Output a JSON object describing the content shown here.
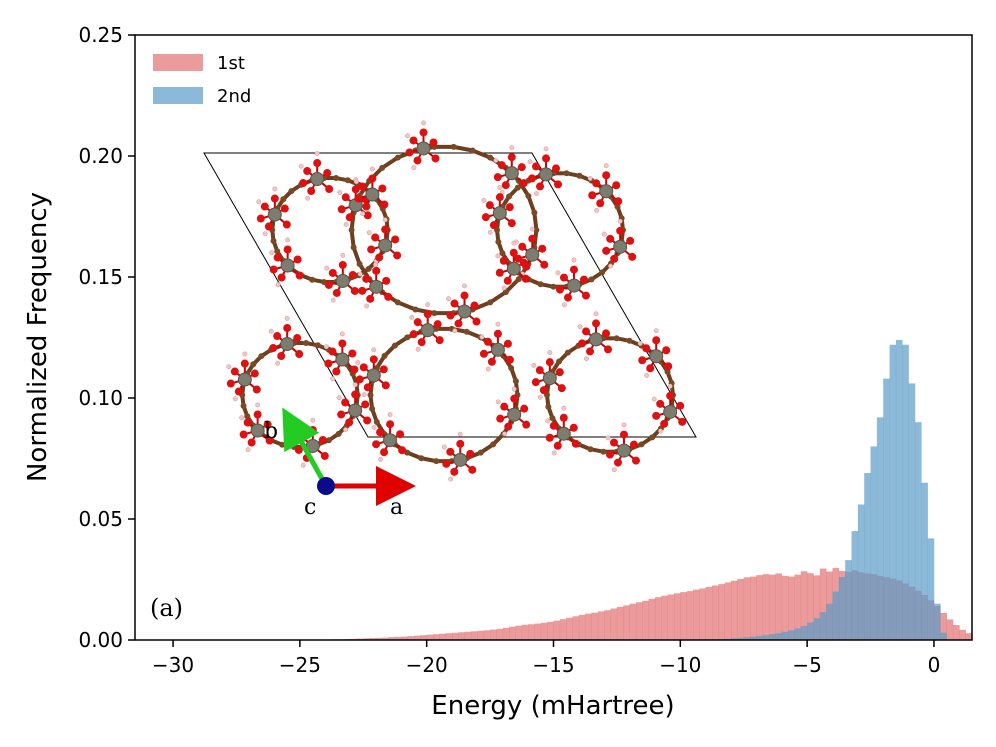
{
  "chart_data": {
    "type": "bar",
    "xlabel": "Energy (mHartree)",
    "ylabel": "Normalized Frequency",
    "xlim": [
      -31.5,
      1.5
    ],
    "ylim": [
      0,
      0.25
    ],
    "x_ticks": [
      -30,
      -25,
      -20,
      -15,
      -10,
      -5,
      0
    ],
    "x_tick_labels": [
      "−30",
      "−25",
      "−20",
      "−15",
      "−10",
      "−5",
      "0"
    ],
    "y_ticks": [
      0,
      0.05,
      0.1,
      0.15,
      0.2,
      0.25
    ],
    "y_tick_labels": [
      "0.00",
      "0.05",
      "0.10",
      "0.15",
      "0.20",
      "0.25"
    ],
    "bin_start": -24.5,
    "bin_width": 0.25,
    "legend_position": "top-left",
    "panel_label": "(a)",
    "series": [
      {
        "name": "1st",
        "color": "#e06666",
        "opacity": 0.65,
        "values": [
          0.0001,
          0.0002,
          0.0002,
          0.0003,
          0.0003,
          0.0004,
          0.0005,
          0.0006,
          0.0007,
          0.0008,
          0.0009,
          0.001,
          0.0012,
          0.0013,
          0.0014,
          0.0016,
          0.0018,
          0.002,
          0.0022,
          0.0024,
          0.0026,
          0.0028,
          0.003,
          0.0032,
          0.0034,
          0.0036,
          0.0038,
          0.004,
          0.0043,
          0.0046,
          0.005,
          0.0055,
          0.0059,
          0.0063,
          0.0065,
          0.0068,
          0.0071,
          0.0075,
          0.008,
          0.0086,
          0.0092,
          0.0098,
          0.0104,
          0.0109,
          0.0113,
          0.0118,
          0.0123,
          0.013,
          0.0137,
          0.0143,
          0.015,
          0.0156,
          0.0162,
          0.017,
          0.0177,
          0.0183,
          0.0188,
          0.0193,
          0.0198,
          0.0202,
          0.0208,
          0.0213,
          0.0219,
          0.0225,
          0.0231,
          0.0238,
          0.0245,
          0.0252,
          0.0259,
          0.0262,
          0.0268,
          0.0272,
          0.027,
          0.0275,
          0.0265,
          0.0262,
          0.027,
          0.0284,
          0.0276,
          0.0267,
          0.0295,
          0.0283,
          0.0298,
          0.0285,
          0.0281,
          0.0288,
          0.028,
          0.0275,
          0.0272,
          0.0265,
          0.026,
          0.0254,
          0.0246,
          0.0234,
          0.022,
          0.0204,
          0.0186,
          0.0164,
          0.014,
          0.0112,
          0.0085,
          0.0062,
          0.0042,
          0.0028,
          0.0016,
          0.0008,
          0.0004
        ]
      },
      {
        "name": "2nd",
        "color": "#5b9bc8",
        "opacity": 0.7,
        "values": [
          0.0,
          0.0,
          0.0,
          0.0,
          0.0,
          0.0,
          0.0,
          0.0,
          0.0,
          0.0,
          0.0,
          0.0,
          0.0,
          0.0,
          0.0,
          0.0,
          0.0,
          0.0,
          0.0,
          0.0,
          0.0,
          0.0,
          0.0,
          0.0,
          0.0,
          0.0,
          0.0,
          0.0,
          0.0,
          0.0,
          0.0,
          0.0,
          0.0,
          0.0,
          0.0,
          0.0,
          0.0,
          0.0,
          0.0,
          0.0,
          0.0,
          0.0,
          0.0,
          0.0,
          0.0,
          0.0,
          0.0,
          0.0,
          0.0,
          0.0,
          0.0,
          0.0,
          0.0,
          0.0,
          0.0,
          0.0,
          0.0,
          0.0,
          0.0,
          0.0,
          0.0001,
          0.0001,
          0.0002,
          0.0003,
          0.0004,
          0.0005,
          0.0007,
          0.0009,
          0.0011,
          0.0014,
          0.0017,
          0.002,
          0.0024,
          0.0028,
          0.0034,
          0.004,
          0.0048,
          0.0058,
          0.0072,
          0.009,
          0.0115,
          0.015,
          0.02,
          0.026,
          0.033,
          0.045,
          0.056,
          0.069,
          0.08,
          0.092,
          0.108,
          0.122,
          0.124,
          0.122,
          0.106,
          0.09,
          0.065,
          0.042,
          0.015,
          0.003,
          0.0,
          0.0,
          0.0,
          0.0,
          0.0,
          0.0,
          0.0
        ]
      }
    ]
  },
  "inset": {
    "axis_a_label": "a",
    "axis_b_label": "b",
    "axis_c_label": "c"
  }
}
